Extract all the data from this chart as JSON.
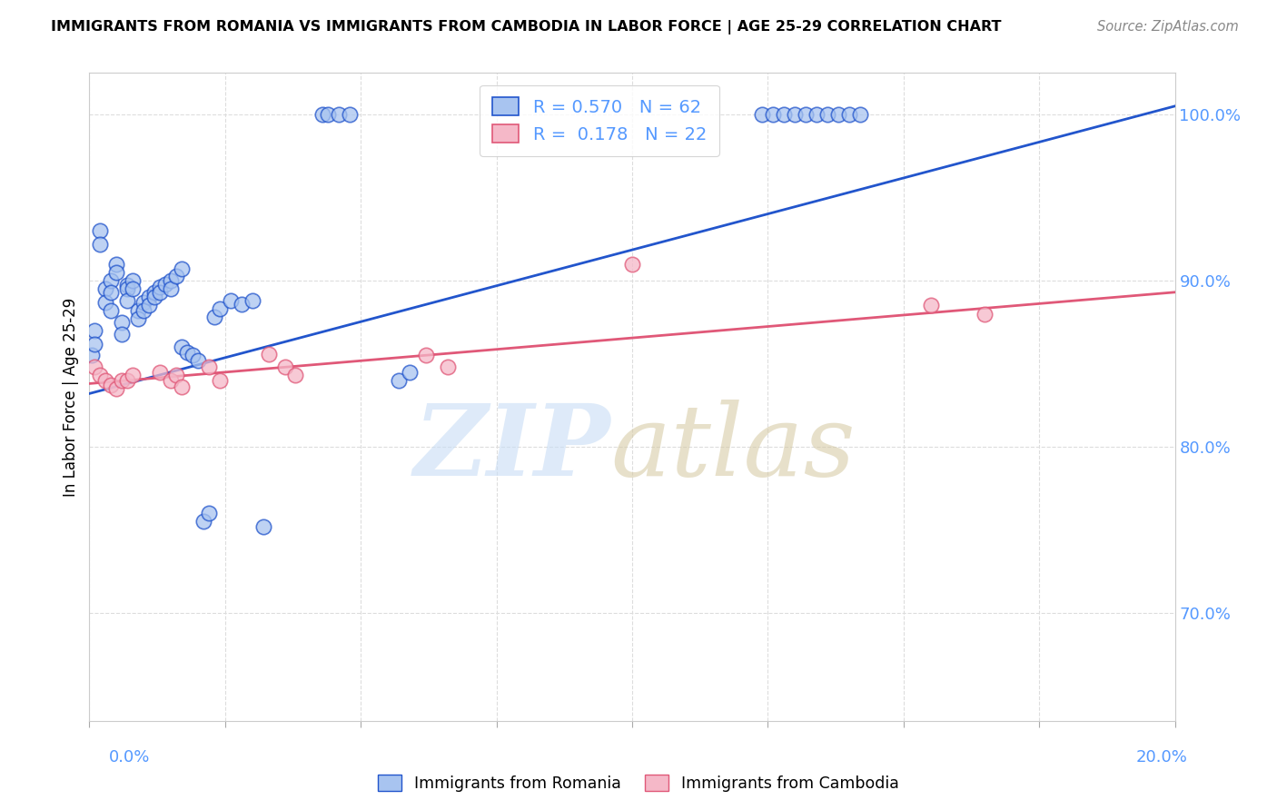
{
  "title": "IMMIGRANTS FROM ROMANIA VS IMMIGRANTS FROM CAMBODIA IN LABOR FORCE | AGE 25-29 CORRELATION CHART",
  "source": "Source: ZipAtlas.com",
  "ylabel": "In Labor Force | Age 25-29",
  "color_romania": "#a8c4f0",
  "color_cambodia": "#f5b8c8",
  "color_romania_line": "#2255cc",
  "color_cambodia_line": "#e05878",
  "color_ytick": "#5599ff",
  "xlim": [
    0.0,
    0.2
  ],
  "ylim": [
    0.635,
    1.025
  ],
  "ytick_vals": [
    0.7,
    0.8,
    0.9,
    1.0
  ],
  "ytick_labels": [
    "70.0%",
    "80.0%",
    "90.0%",
    "100.0%"
  ],
  "grid_color": "#dddddd",
  "romania_x": [
    0.0005,
    0.001,
    0.001,
    0.002,
    0.002,
    0.003,
    0.003,
    0.004,
    0.004,
    0.004,
    0.005,
    0.005,
    0.006,
    0.006,
    0.007,
    0.007,
    0.007,
    0.008,
    0.008,
    0.009,
    0.009,
    0.01,
    0.01,
    0.011,
    0.011,
    0.012,
    0.012,
    0.013,
    0.013,
    0.014,
    0.015,
    0.015,
    0.016,
    0.017,
    0.017,
    0.018,
    0.019,
    0.02,
    0.021,
    0.022,
    0.023,
    0.024,
    0.026,
    0.028,
    0.03,
    0.032,
    0.043,
    0.044,
    0.046,
    0.048,
    0.057,
    0.059,
    0.124,
    0.126,
    0.128,
    0.13,
    0.132,
    0.134,
    0.136,
    0.138,
    0.14,
    0.142
  ],
  "romania_y": [
    0.855,
    0.87,
    0.862,
    0.93,
    0.922,
    0.895,
    0.887,
    0.9,
    0.893,
    0.882,
    0.91,
    0.905,
    0.875,
    0.868,
    0.897,
    0.895,
    0.888,
    0.9,
    0.895,
    0.882,
    0.877,
    0.887,
    0.882,
    0.89,
    0.885,
    0.893,
    0.89,
    0.896,
    0.893,
    0.898,
    0.9,
    0.895,
    0.903,
    0.907,
    0.86,
    0.857,
    0.855,
    0.852,
    0.755,
    0.76,
    0.878,
    0.883,
    0.888,
    0.886,
    0.888,
    0.752,
    1.0,
    1.0,
    1.0,
    1.0,
    0.84,
    0.845,
    1.0,
    1.0,
    1.0,
    1.0,
    1.0,
    1.0,
    1.0,
    1.0,
    1.0,
    1.0
  ],
  "cambodia_x": [
    0.001,
    0.002,
    0.003,
    0.004,
    0.005,
    0.006,
    0.007,
    0.008,
    0.013,
    0.015,
    0.016,
    0.017,
    0.022,
    0.024,
    0.033,
    0.036,
    0.038,
    0.062,
    0.066,
    0.1,
    0.155,
    0.165
  ],
  "cambodia_y": [
    0.848,
    0.843,
    0.84,
    0.837,
    0.835,
    0.84,
    0.84,
    0.843,
    0.845,
    0.84,
    0.843,
    0.836,
    0.848,
    0.84,
    0.856,
    0.848,
    0.843,
    0.855,
    0.848,
    0.91,
    0.885,
    0.88
  ],
  "trend_romania_x0": 0.0,
  "trend_romania_y0": 0.832,
  "trend_romania_x1": 0.2,
  "trend_romania_y1": 1.005,
  "trend_cambodia_x0": 0.0,
  "trend_cambodia_y0": 0.838,
  "trend_cambodia_x1": 0.2,
  "trend_cambodia_y1": 0.893,
  "watermark_zip": "ZIP",
  "watermark_atlas": "atlas",
  "legend1_label": "R = 0.570   N = 62",
  "legend2_label": "R =  0.178   N = 22",
  "bottom_label1": "Immigrants from Romania",
  "bottom_label2": "Immigrants from Cambodia"
}
